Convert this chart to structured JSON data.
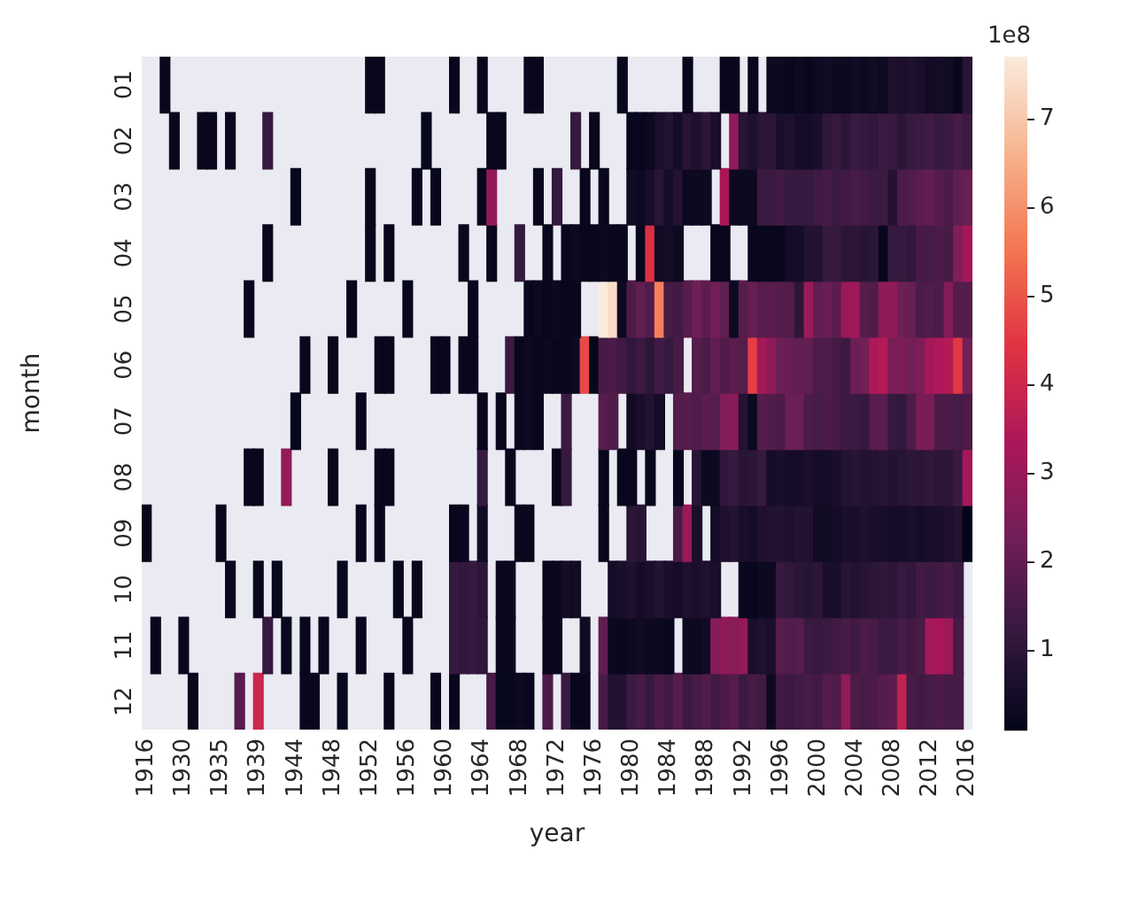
{
  "chart_data": {
    "type": "heatmap",
    "xlabel": "year",
    "ylabel": "month",
    "clabel": "1e8",
    "categories": [
      "1916",
      null,
      null,
      null,
      "1930",
      null,
      null,
      null,
      "1935",
      null,
      null,
      null,
      "1939",
      null,
      null,
      null,
      "1944",
      null,
      null,
      null,
      "1948",
      null,
      null,
      null,
      "1952",
      null,
      null,
      null,
      "1956",
      null,
      null,
      null,
      "1960",
      null,
      null,
      null,
      "1964",
      null,
      null,
      null,
      "1968",
      null,
      null,
      null,
      "1972",
      null,
      null,
      null,
      "1976",
      null,
      null,
      null,
      "1980",
      null,
      null,
      null,
      "1984",
      null,
      null,
      null,
      "1988",
      null,
      null,
      null,
      "1992",
      null,
      null,
      null,
      "1996",
      null,
      null,
      null,
      "2000",
      null,
      null,
      null,
      "2004",
      null,
      null,
      null,
      "2008",
      null,
      null,
      null,
      "2012",
      null,
      null,
      null,
      "2016"
    ],
    "y_categories": [
      "01",
      "02",
      "03",
      "04",
      "05",
      "06",
      "07",
      "08",
      "09",
      "10",
      "11",
      "12"
    ],
    "cells": [
      [
        null,
        null,
        0.2,
        null,
        null,
        null,
        null,
        null,
        null,
        null,
        null,
        null,
        null,
        null,
        null,
        null,
        null,
        null,
        null,
        null,
        null,
        null,
        null,
        null,
        0.2,
        0.2,
        null,
        null,
        null,
        null,
        null,
        null,
        null,
        0.2,
        null,
        null,
        0.2,
        null,
        null,
        null,
        null,
        0.2,
        0.2,
        null,
        null,
        null,
        null,
        null,
        null,
        null,
        null,
        0.2,
        null,
        null,
        null,
        null,
        null,
        null,
        0.2,
        null,
        null,
        null,
        0.2,
        0.2,
        null,
        0.2,
        null,
        0.3,
        0.3,
        0.2,
        0.3,
        0.2,
        0.3,
        0.4,
        0.3,
        0.3,
        0.4,
        0.3,
        0.4,
        0.3,
        0.7,
        0.6,
        0.7,
        0.6,
        0.4,
        0.5,
        0.4,
        0.2,
        0.9
      ],
      [
        null,
        null,
        null,
        0.2,
        null,
        null,
        0.2,
        0.2,
        null,
        0.2,
        null,
        null,
        null,
        1.2,
        null,
        null,
        null,
        null,
        null,
        null,
        null,
        null,
        null,
        null,
        null,
        null,
        null,
        null,
        null,
        null,
        0.2,
        null,
        null,
        null,
        null,
        null,
        null,
        0.2,
        0.2,
        null,
        null,
        null,
        null,
        null,
        null,
        null,
        1.2,
        null,
        0.2,
        null,
        null,
        null,
        0.2,
        0.2,
        0.3,
        0.6,
        0.8,
        0.5,
        0.9,
        0.7,
        1.0,
        0.6,
        null,
        2.8,
        0.9,
        0.7,
        1.0,
        1.0,
        0.6,
        0.7,
        0.5,
        0.5,
        0.6,
        1.1,
        1.2,
        1.0,
        1.3,
        1.2,
        1.1,
        1.3,
        1.2,
        1.0,
        1.2,
        1.3,
        1.4,
        1.2,
        1.3,
        1.5,
        1.3
      ],
      [
        null,
        null,
        null,
        null,
        null,
        null,
        null,
        null,
        null,
        null,
        null,
        null,
        null,
        null,
        null,
        null,
        0.2,
        null,
        null,
        null,
        null,
        null,
        null,
        null,
        0.2,
        null,
        null,
        null,
        null,
        0.2,
        null,
        0.2,
        null,
        null,
        null,
        null,
        0.2,
        2.9,
        null,
        null,
        null,
        null,
        0.2,
        null,
        1.2,
        null,
        null,
        0.2,
        null,
        0.2,
        null,
        null,
        0.4,
        0.3,
        0.6,
        0.9,
        0.5,
        0.8,
        0.3,
        0.3,
        0.3,
        null,
        3.3,
        0.3,
        0.3,
        0.3,
        1.3,
        1.3,
        1.4,
        1.2,
        1.2,
        1.2,
        1.4,
        1.5,
        1.3,
        1.4,
        1.5,
        1.4,
        1.3,
        1.3,
        0.8,
        1.6,
        1.7,
        1.9,
        2.0,
        1.8,
        1.6,
        2.0,
        2.1
      ],
      [
        null,
        null,
        null,
        null,
        null,
        null,
        null,
        null,
        null,
        null,
        null,
        null,
        null,
        0.2,
        null,
        null,
        null,
        null,
        null,
        null,
        null,
        null,
        null,
        null,
        0.2,
        null,
        0.2,
        null,
        null,
        null,
        null,
        null,
        null,
        null,
        0.2,
        null,
        null,
        0.2,
        null,
        null,
        1.2,
        null,
        null,
        0.2,
        null,
        0.2,
        0.3,
        0.2,
        0.2,
        0.3,
        0.2,
        0.2,
        null,
        0.2,
        4.3,
        0.4,
        0.5,
        0.3,
        null,
        null,
        null,
        0.2,
        0.2,
        null,
        null,
        0.2,
        0.2,
        0.2,
        0.2,
        0.5,
        0.5,
        0.8,
        0.8,
        1.2,
        1.2,
        1.0,
        1.0,
        0.9,
        1.0,
        0.2,
        1.2,
        1.2,
        1.1,
        1.5,
        1.5,
        1.6,
        1.5,
        2.6,
        3.2
      ],
      [
        null,
        null,
        null,
        null,
        null,
        null,
        null,
        null,
        null,
        null,
        null,
        0.2,
        null,
        null,
        null,
        null,
        null,
        null,
        null,
        null,
        null,
        null,
        0.2,
        null,
        null,
        null,
        null,
        null,
        0.2,
        null,
        null,
        null,
        null,
        null,
        null,
        0.2,
        null,
        null,
        null,
        null,
        null,
        0.2,
        0.3,
        0.2,
        0.3,
        0.2,
        0.2,
        null,
        null,
        7.7,
        7.4,
        0.3,
        1.6,
        2.0,
        1.7,
        5.7,
        1.5,
        1.4,
        1.8,
        2.2,
        1.9,
        2.3,
        2.0,
        0.3,
        1.8,
        2.1,
        1.8,
        1.9,
        1.8,
        1.7,
        1.0,
        3.0,
        2.0,
        2.1,
        1.9,
        3.0,
        3.1,
        1.8,
        1.7,
        2.8,
        2.9,
        2.2,
        2.1,
        1.6,
        1.7,
        1.6,
        2.6,
        1.8,
        1.8
      ],
      [
        null,
        null,
        null,
        null,
        null,
        null,
        null,
        null,
        null,
        null,
        null,
        null,
        null,
        null,
        null,
        null,
        null,
        0.2,
        null,
        null,
        0.2,
        null,
        null,
        null,
        null,
        0.2,
        0.2,
        null,
        null,
        null,
        null,
        0.2,
        0.2,
        null,
        0.2,
        0.2,
        null,
        null,
        null,
        1.3,
        0.2,
        0.3,
        0.2,
        0.3,
        0.2,
        0.2,
        0.3,
        4.8,
        0.2,
        1.5,
        1.6,
        1.4,
        1.1,
        1.3,
        1.0,
        1.4,
        1.2,
        1.5,
        null,
        1.8,
        1.6,
        2.0,
        1.7,
        1.9,
        1.8,
        4.6,
        3.2,
        2.8,
        2.2,
        2.1,
        2.0,
        2.0,
        1.6,
        1.7,
        1.5,
        1.3,
        2.2,
        2.3,
        3.4,
        3.5,
        2.4,
        2.5,
        2.3,
        2.5,
        3.2,
        3.4,
        3.5,
        4.5,
        2.3
      ],
      [
        null,
        null,
        null,
        null,
        null,
        null,
        null,
        null,
        null,
        null,
        null,
        null,
        null,
        null,
        null,
        null,
        0.2,
        null,
        null,
        null,
        null,
        null,
        null,
        0.2,
        null,
        null,
        null,
        null,
        null,
        null,
        null,
        null,
        null,
        null,
        null,
        null,
        0.2,
        null,
        0.2,
        null,
        0.2,
        0.3,
        0.2,
        null,
        null,
        1.3,
        null,
        null,
        null,
        1.8,
        1.7,
        null,
        0.4,
        0.6,
        0.8,
        0.5,
        null,
        1.8,
        1.8,
        1.7,
        1.9,
        1.8,
        2.6,
        2.7,
        0.8,
        0.3,
        1.8,
        1.7,
        1.6,
        2.2,
        2.2,
        1.6,
        1.5,
        1.6,
        1.5,
        1.3,
        1.3,
        1.2,
        1.8,
        1.9,
        1.2,
        1.1,
        1.6,
        2.4,
        2.4,
        1.6,
        1.6,
        1.5,
        1.6
      ],
      [
        null,
        null,
        null,
        null,
        null,
        null,
        null,
        null,
        null,
        null,
        null,
        0.2,
        0.2,
        null,
        null,
        2.9,
        null,
        null,
        null,
        null,
        0.2,
        null,
        null,
        null,
        null,
        0.2,
        0.2,
        null,
        null,
        null,
        null,
        null,
        null,
        null,
        null,
        null,
        1.2,
        null,
        null,
        0.2,
        null,
        null,
        null,
        null,
        0.2,
        1.2,
        null,
        null,
        null,
        0.2,
        null,
        0.2,
        0.2,
        null,
        0.2,
        null,
        null,
        0.2,
        null,
        0.9,
        0.3,
        0.3,
        1.1,
        1.2,
        0.9,
        1.0,
        1.2,
        0.5,
        0.6,
        0.5,
        0.5,
        0.6,
        0.5,
        0.5,
        0.6,
        0.8,
        0.9,
        0.8,
        0.8,
        0.9,
        0.8,
        0.9,
        1.0,
        1.0,
        1.1,
        1.0,
        1.0,
        1.3,
        3.2
      ],
      [
        0.2,
        null,
        null,
        null,
        null,
        null,
        null,
        null,
        0.2,
        null,
        null,
        null,
        null,
        null,
        null,
        null,
        null,
        null,
        null,
        null,
        null,
        null,
        null,
        0.2,
        null,
        0.2,
        null,
        null,
        null,
        null,
        null,
        null,
        null,
        0.2,
        0.2,
        null,
        0.4,
        null,
        null,
        null,
        0.2,
        0.2,
        null,
        null,
        null,
        null,
        null,
        null,
        null,
        0.2,
        null,
        null,
        1.0,
        0.9,
        null,
        null,
        null,
        1.5,
        3.0,
        0.6,
        null,
        0.5,
        0.7,
        0.8,
        0.6,
        0.5,
        0.7,
        0.8,
        0.8,
        0.7,
        0.8,
        0.8,
        0.4,
        0.4,
        0.5,
        0.6,
        0.6,
        0.7,
        0.6,
        0.6,
        0.5,
        0.5,
        0.6,
        0.5,
        0.6,
        0.6,
        0.7,
        0.8,
        0.1
      ],
      [
        null,
        null,
        null,
        null,
        null,
        null,
        null,
        null,
        null,
        0.2,
        null,
        null,
        0.2,
        null,
        0.2,
        null,
        null,
        null,
        null,
        null,
        null,
        0.2,
        null,
        null,
        null,
        null,
        null,
        0.2,
        null,
        0.2,
        null,
        null,
        null,
        1.2,
        1.1,
        1.2,
        1.0,
        null,
        0.2,
        0.2,
        null,
        null,
        null,
        0.2,
        0.2,
        0.5,
        0.4,
        null,
        null,
        null,
        0.5,
        0.6,
        0.7,
        0.5,
        0.6,
        0.8,
        0.6,
        0.5,
        0.7,
        0.6,
        0.7,
        0.6,
        null,
        null,
        0.2,
        0.2,
        0.3,
        0.3,
        1.2,
        1.1,
        1.0,
        0.9,
        1.0,
        0.6,
        0.6,
        0.9,
        0.8,
        0.9,
        1.0,
        1.1,
        1.0,
        1.2,
        1.1,
        1.4,
        1.3,
        1.4,
        1.5,
        1.3,
        null
      ],
      [
        null,
        0.2,
        null,
        null,
        0.2,
        null,
        null,
        null,
        null,
        null,
        null,
        null,
        null,
        1.2,
        null,
        0.2,
        null,
        0.2,
        null,
        0.2,
        null,
        null,
        null,
        0.2,
        null,
        null,
        null,
        null,
        0.2,
        null,
        null,
        null,
        null,
        1.2,
        1.1,
        1.2,
        1.1,
        null,
        0.2,
        0.2,
        null,
        null,
        null,
        0.2,
        0.2,
        null,
        null,
        0.4,
        null,
        2.0,
        0.3,
        0.2,
        0.3,
        0.4,
        0.3,
        0.3,
        0.2,
        null,
        0.3,
        0.3,
        0.4,
        2.6,
        2.8,
        2.7,
        2.9,
        0.6,
        0.7,
        0.6,
        1.8,
        1.7,
        1.8,
        1.3,
        1.2,
        1.3,
        1.4,
        1.5,
        1.4,
        1.6,
        1.5,
        1.3,
        1.3,
        1.5,
        1.4,
        1.5,
        3.2,
        3.3,
        3.1,
        1.5,
        null
      ],
      [
        null,
        null,
        null,
        null,
        null,
        0.2,
        null,
        null,
        null,
        null,
        1.8,
        null,
        4.0,
        null,
        null,
        null,
        null,
        0.2,
        0.2,
        null,
        null,
        0.2,
        null,
        null,
        null,
        null,
        0.2,
        null,
        null,
        null,
        null,
        0.2,
        null,
        0.2,
        null,
        null,
        null,
        1.5,
        0.2,
        0.2,
        0.3,
        0.2,
        null,
        1.6,
        null,
        1.3,
        0.2,
        0.2,
        null,
        1.5,
        0.8,
        0.8,
        1.3,
        1.5,
        1.2,
        1.6,
        1.4,
        1.8,
        1.3,
        1.5,
        1.7,
        1.4,
        1.6,
        1.8,
        1.3,
        1.5,
        1.4,
        0.3,
        1.4,
        1.3,
        1.4,
        1.5,
        1.4,
        1.8,
        1.7,
        2.8,
        1.6,
        1.5,
        1.6,
        1.8,
        1.9,
        3.8,
        1.5,
        1.4,
        1.5,
        1.6,
        1.5,
        1.5,
        null
      ]
    ],
    "clim": [
      0.1,
      7.7
    ],
    "cticks": [
      1,
      2,
      3,
      4,
      5,
      6,
      7
    ]
  }
}
